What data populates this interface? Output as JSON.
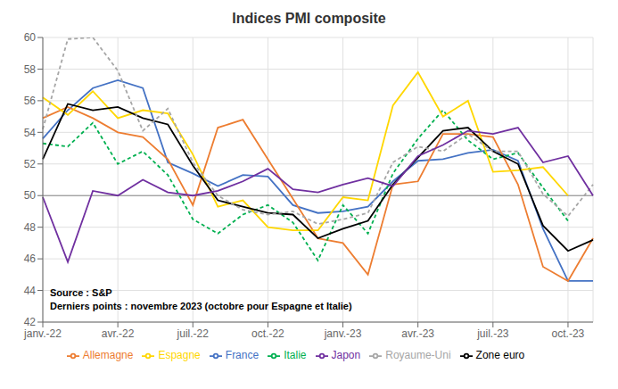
{
  "chart_data": {
    "type": "line",
    "title": "Indices PMI composite",
    "categories": [
      "janv.-22",
      null,
      null,
      "avr.-22",
      null,
      null,
      "juil.-22",
      null,
      null,
      "oct.-22",
      null,
      null,
      "janv.-23",
      null,
      null,
      "avr.-23",
      null,
      null,
      "juil.-23",
      null,
      null,
      "oct.-23",
      null
    ],
    "series": [
      {
        "name": "France",
        "color": "#4472C4",
        "line_style": "solid",
        "values": [
          53.6,
          55.4,
          56.8,
          57.3,
          56.8,
          52.1,
          51.4,
          50.6,
          51.3,
          51.2,
          49.4,
          48.9,
          49.0,
          49.3,
          50.9,
          52.2,
          52.3,
          52.7,
          52.9,
          52.2,
          47.9,
          44.6,
          44.6
        ]
      },
      {
        "name": "Allemagne",
        "color": "#ED7D31",
        "line_style": "solid",
        "values": [
          54.9,
          55.6,
          54.9,
          54.0,
          53.7,
          52.3,
          49.4,
          54.3,
          54.8,
          52.3,
          49.8,
          47.3,
          47.0,
          45.0,
          50.7,
          50.9,
          53.9,
          53.9,
          53.7,
          50.7,
          45.5,
          44.6,
          47.3
        ]
      },
      {
        "name": "Italie",
        "color": "#00B050",
        "line_style": "dashed",
        "values": [
          53.3,
          53.1,
          54.6,
          52.0,
          52.8,
          51.3,
          48.5,
          47.6,
          48.8,
          49.4,
          48.3,
          45.9,
          49.4,
          47.6,
          51.4,
          53.6,
          55.4,
          53.5,
          52.3,
          52.7,
          50.5,
          48.4,
          null
        ]
      },
      {
        "name": "Espagne",
        "color": "#FFD700",
        "line_style": "solid",
        "values": [
          56.2,
          55.1,
          56.6,
          54.9,
          55.4,
          55.2,
          52.6,
          49.3,
          49.7,
          48.0,
          47.8,
          47.8,
          49.9,
          49.7,
          55.7,
          57.8,
          55.0,
          56.0,
          51.5,
          51.6,
          51.8,
          50.0,
          null
        ]
      },
      {
        "name": "Zone euro",
        "color": "#000000",
        "line_style": "solid",
        "values": [
          52.3,
          55.8,
          55.4,
          55.6,
          54.9,
          54.5,
          51.9,
          49.7,
          49.3,
          48.9,
          48.8,
          47.3,
          47.9,
          48.4,
          50.7,
          52.4,
          54.1,
          54.3,
          52.8,
          52.0,
          48.1,
          46.5,
          47.2
        ]
      },
      {
        "name": "Royaume-Uni",
        "color": "#A6A6A6",
        "line_style": "dashed",
        "values": [
          54.2,
          59.9,
          60.0,
          57.9,
          54.1,
          55.5,
          52.1,
          50.0,
          49.1,
          48.8,
          49.0,
          48.2,
          48.5,
          48.9,
          52.1,
          53.1,
          52.8,
          53.9,
          52.8,
          52.8,
          50.1,
          48.7,
          50.7
        ]
      },
      {
        "name": "Japon",
        "color": "#7030A0",
        "line_style": "solid",
        "values": [
          49.9,
          45.8,
          50.3,
          50.0,
          51.0,
          50.2,
          50.0,
          50.3,
          50.9,
          51.7,
          50.4,
          50.2,
          50.7,
          51.1,
          50.6,
          52.5,
          53.2,
          54.1,
          53.9,
          54.3,
          52.1,
          52.5,
          50.0
        ]
      }
    ],
    "ylim": [
      42,
      60
    ],
    "yticks": [
      42,
      44,
      46,
      48,
      50,
      52,
      54,
      56,
      58,
      60
    ],
    "hline": 50,
    "annotations": [
      "Source : S&P",
      "Derniers points : novembre 2023 (octobre pour Espagne et Italie)"
    ],
    "grid": true,
    "legend": "bottom"
  }
}
